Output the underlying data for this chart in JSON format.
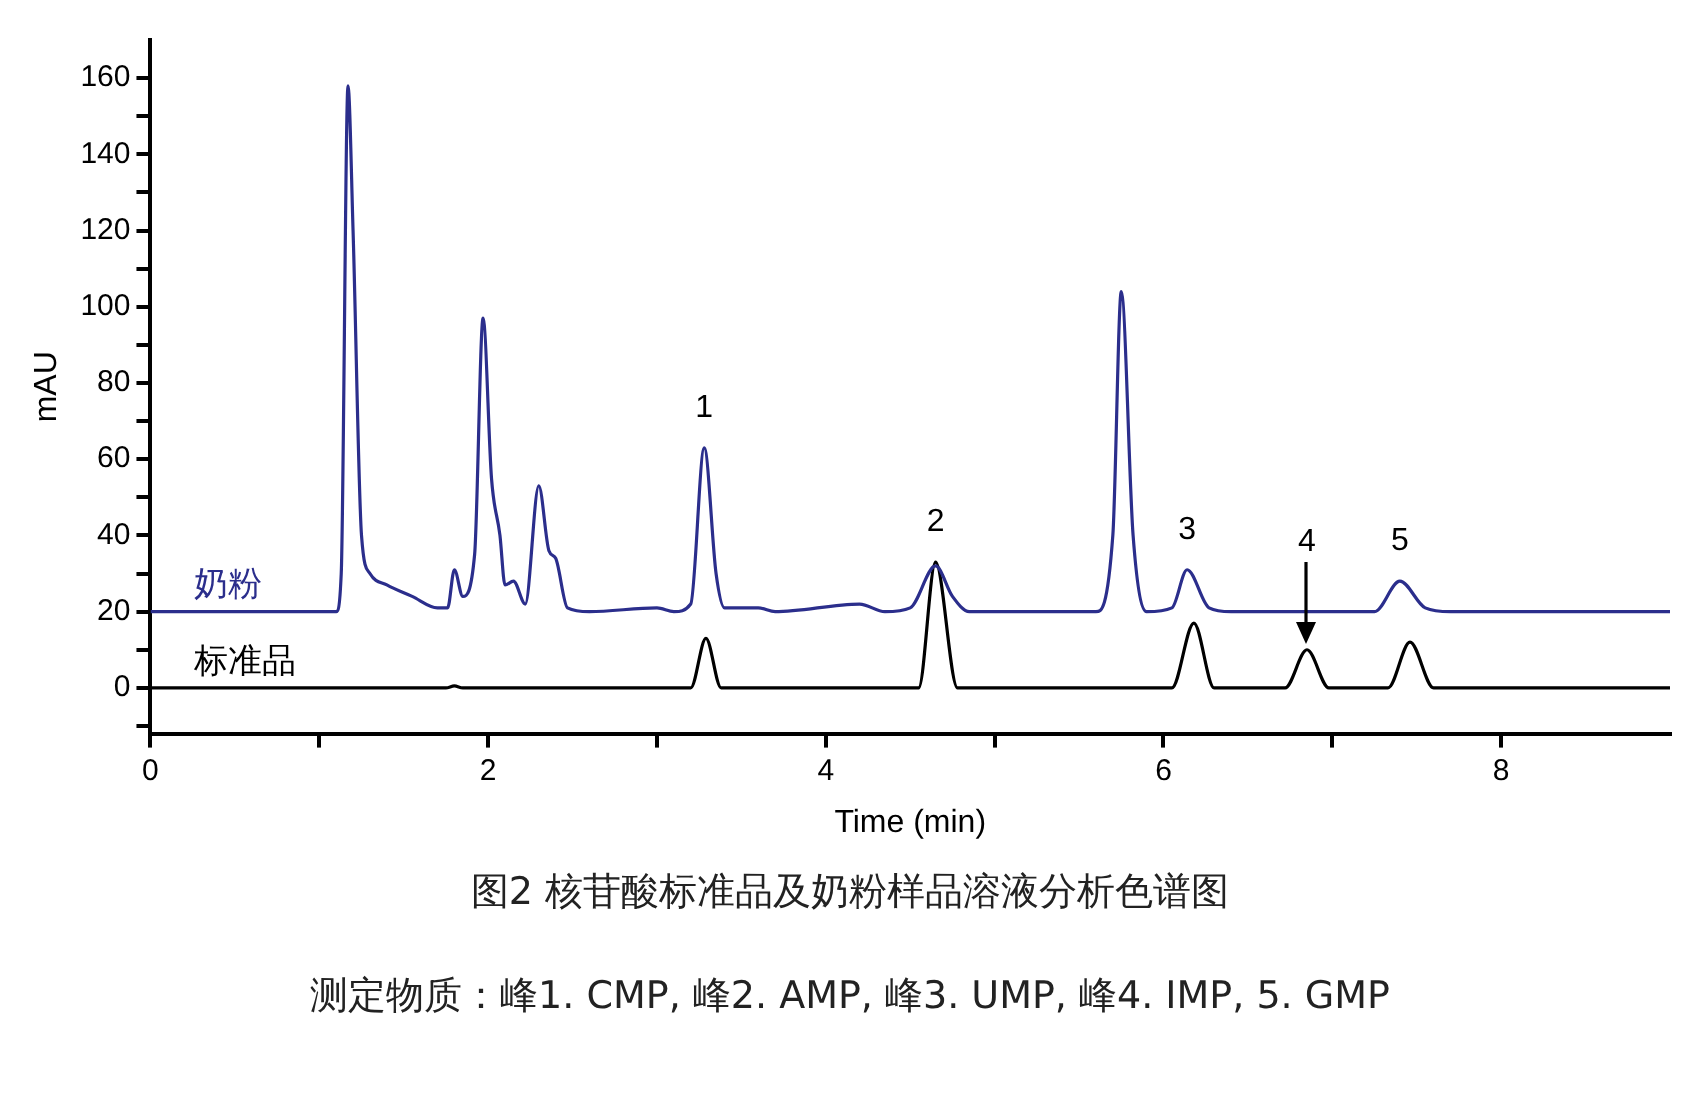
{
  "chart_data": {
    "type": "line",
    "title": "图2  核苷酸标准品及奶粉样品溶液分析色谱图",
    "xlabel": "Time (min)",
    "ylabel": "mAU",
    "xlim": [
      0,
      9
    ],
    "ylim": [
      -12,
      170
    ],
    "xticks": [
      0,
      {
        "value": 1,
        "label": null
      },
      2,
      {
        "value": 3,
        "label": null
      },
      4,
      {
        "value": 5,
        "label": null
      },
      6,
      {
        "value": 7,
        "label": null
      },
      8
    ],
    "yticks": [
      {
        "value": -10,
        "label": null
      },
      0,
      {
        "value": 10,
        "label": null
      },
      20,
      {
        "value": 30,
        "label": null
      },
      40,
      {
        "value": 50,
        "label": null
      },
      60,
      {
        "value": 70,
        "label": null
      },
      80,
      {
        "value": 90,
        "label": null
      },
      100,
      {
        "value": 110,
        "label": null
      },
      120,
      {
        "value": 130,
        "label": null
      },
      140,
      {
        "value": 150,
        "label": null
      },
      160
    ],
    "grid": false,
    "legend": false,
    "marker": "none",
    "line_style": "solid",
    "series": [
      {
        "name": "奶粉",
        "color": "#2b2e8c",
        "x": [
          0,
          1.1,
          1.13,
          1.17,
          1.2,
          1.25,
          1.3,
          1.4,
          1.55,
          1.7,
          1.76,
          1.8,
          1.85,
          1.92,
          1.97,
          2.02,
          2.07,
          2.1,
          2.15,
          2.22,
          2.3,
          2.36,
          2.4,
          2.47,
          2.6,
          3.0,
          3.1,
          3.2,
          3.28,
          3.35,
          3.4,
          3.6,
          3.7,
          4.2,
          4.35,
          4.5,
          4.65,
          4.75,
          4.85,
          5.6,
          5.7,
          5.75,
          5.82,
          5.9,
          6.05,
          6.14,
          6.27,
          6.4,
          7.25,
          7.4,
          7.55,
          7.7,
          9
        ],
        "values": [
          20,
          20,
          30,
          158,
          120,
          40,
          30,
          27,
          24,
          21,
          21,
          31,
          24,
          35,
          97,
          55,
          40,
          27,
          28,
          22,
          53,
          36,
          34,
          21,
          20,
          21,
          20,
          22,
          63,
          30,
          21,
          21,
          20,
          22,
          20,
          21,
          32,
          24,
          20,
          20,
          40,
          104,
          40,
          20,
          21,
          31,
          21,
          20,
          20,
          28,
          21,
          20,
          20
        ]
      },
      {
        "name": "标准品",
        "color": "#000000",
        "x": [
          0,
          1.75,
          1.8,
          1.85,
          3.2,
          3.29,
          3.38,
          4.55,
          4.65,
          4.78,
          6.05,
          6.18,
          6.3,
          6.72,
          6.85,
          6.98,
          7.33,
          7.46,
          7.6,
          9
        ],
        "values": [
          0,
          0,
          0.5,
          0,
          0,
          13,
          0,
          0,
          33,
          0,
          0,
          17,
          0,
          0,
          10,
          0,
          0,
          12,
          0,
          0
        ]
      }
    ],
    "annotations": [
      {
        "text": "1",
        "x": 3.28,
        "y": 63
      },
      {
        "text": "2",
        "x": 4.65,
        "y": 33
      },
      {
        "text": "3",
        "x": 6.14,
        "y": 31
      },
      {
        "text": "4",
        "x": 6.85,
        "y": 10
      },
      {
        "text": "5",
        "x": 7.4,
        "y": 28
      },
      "测定物质：峰1. CMP, 峰2. AMP, 峰3. UMP, 峰4. IMP, 5. GMP"
    ]
  }
}
